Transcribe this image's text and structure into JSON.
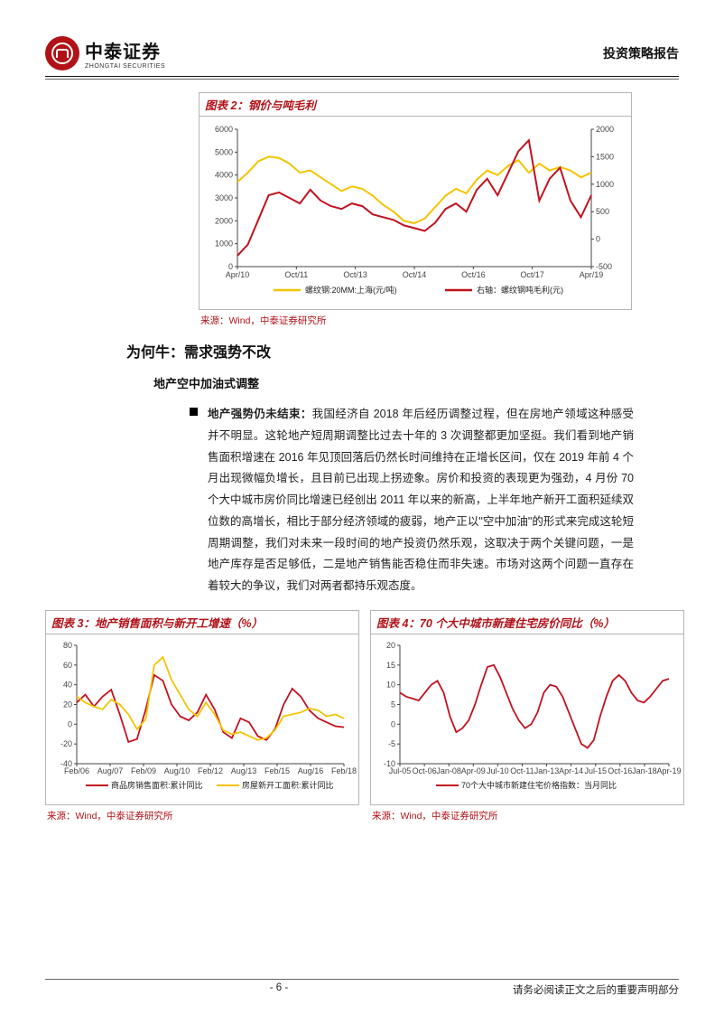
{
  "header": {
    "company_cn": "中泰证券",
    "company_en": "ZHONGTAI SECURITIES",
    "report_type": "投资策略报告"
  },
  "chart2": {
    "title": "图表 2：钢价与吨毛利",
    "source": "来源：Wind，中泰证券研究所",
    "left_axis": {
      "min": 0,
      "max": 6000,
      "ticks": [
        0,
        1000,
        2000,
        3000,
        4000,
        5000,
        6000
      ]
    },
    "right_axis": {
      "min": -500,
      "max": 2000,
      "ticks": [
        -500,
        0,
        500,
        1000,
        1500,
        2000
      ]
    },
    "x_labels": [
      "Apr/10",
      "Oct/11",
      "Oct/13",
      "Oct/14",
      "Oct/16",
      "Oct/17",
      "Apr/19"
    ],
    "series1": {
      "name": "螺纹钢:20MM:上海(元/吨)",
      "color": "#f5c400",
      "points": [
        3700,
        4100,
        4600,
        4800,
        4750,
        4500,
        4100,
        4200,
        3900,
        3600,
        3300,
        3500,
        3400,
        3100,
        2700,
        2400,
        2000,
        1900,
        2100,
        2600,
        3100,
        3400,
        3200,
        3800,
        4200,
        4000,
        4400,
        4650,
        4100,
        4500,
        4200,
        4350,
        4200,
        3900,
        4100
      ]
    },
    "series2": {
      "name": "右轴：螺纹钢吨毛利(元)",
      "color": "#c1121f",
      "points": [
        -300,
        -100,
        350,
        800,
        850,
        750,
        650,
        900,
        700,
        600,
        550,
        650,
        600,
        450,
        400,
        350,
        250,
        200,
        150,
        300,
        550,
        650,
        500,
        900,
        1100,
        800,
        1200,
        1600,
        1800,
        700,
        1100,
        1300,
        700,
        400,
        800
      ]
    }
  },
  "section": {
    "h1": "为何牛：需求强势不改",
    "h2": "地产空中加油式调整",
    "para_title": "地产强势仍未结束：",
    "para_body": "我国经济自 2018 年后经历调整过程，但在房地产领域这种感受并不明显。这轮地产短周期调整比过去十年的 3 次调整都更加坚挺。我们看到地产销售面积增速在 2016 年见顶回落后仍然长时间维持在正增长区间，仅在 2019 年前 4 个月出现微幅负增长，且目前已出现上拐迹象。房价和投资的表现更为强劲，4 月份 70 个大中城市房价同比增速已经创出 2011 年以来的新高，上半年地产新开工面积延续双位数的高增长，相比于部分经济领域的疲弱，地产正以\"空中加油\"的形式来完成这轮短周期调整，我们对未来一段时间的地产投资仍然乐观，这取决于两个关键问题，一是地产库存是否足够低，二是地产销售能否稳住而非失速。市场对这两个问题一直存在着较大的争议，我们对两者都持乐观态度。"
  },
  "chart3": {
    "title": "图表 3：地产销售面积与新开工增速（%）",
    "source": "来源：Wind，中泰证券研究所",
    "y_axis": {
      "ticks": [
        -40,
        -20,
        0,
        20,
        40,
        60,
        80
      ]
    },
    "x_labels": [
      "Feb/06",
      "Aug/07",
      "Feb/09",
      "Aug/10",
      "Feb/12",
      "Aug/13",
      "Feb/15",
      "Aug/16",
      "Feb/18"
    ],
    "series1": {
      "name": "商品房销售面积:累计同比",
      "color": "#c1121f",
      "points": [
        22,
        30,
        18,
        28,
        35,
        10,
        -18,
        -15,
        15,
        50,
        44,
        20,
        8,
        4,
        12,
        30,
        15,
        -8,
        -14,
        6,
        2,
        -12,
        -16,
        -5,
        20,
        36,
        28,
        14,
        6,
        2,
        -2,
        -3
      ]
    },
    "series2": {
      "name": "房屋新开工面积:累计同比",
      "color": "#f5c400",
      "points": [
        28,
        22,
        18,
        15,
        25,
        20,
        10,
        -5,
        5,
        60,
        68,
        45,
        30,
        15,
        8,
        22,
        10,
        -6,
        -10,
        -8,
        -12,
        -16,
        -14,
        -6,
        8,
        10,
        12,
        16,
        14,
        8,
        10,
        6
      ]
    }
  },
  "chart4": {
    "title": "图表 4：70 个大中城市新建住宅房价同比（%）",
    "source": "来源：Wind，中泰证券研究所",
    "y_axis": {
      "ticks": [
        -10,
        -5,
        0,
        5,
        10,
        15,
        20
      ]
    },
    "x_labels": [
      "Jul-05",
      "Oct-06",
      "Jan-08",
      "Apr-09",
      "Jul-10",
      "Oct-11",
      "Jan-13",
      "Apr-14",
      "Jul-15",
      "Oct-16",
      "Jan-18",
      "Apr-19"
    ],
    "series1": {
      "name": "70个大中城市新建住宅价格指数：当月同比",
      "color": "#c1121f",
      "points": [
        8,
        7,
        6.5,
        6,
        8,
        10,
        11,
        8,
        2,
        -2,
        -1,
        1,
        5,
        10,
        14.5,
        15,
        12,
        8,
        4,
        1,
        -1,
        0,
        3,
        8,
        10,
        9.5,
        7,
        3,
        -1,
        -5,
        -6,
        -4,
        2,
        7,
        11,
        12.5,
        11,
        8,
        6,
        5.5,
        7,
        9,
        11,
        11.5
      ]
    }
  },
  "footer": {
    "page": "- 6 -",
    "disclaimer": "请务必阅读正文之后的重要声明部分"
  },
  "colors": {
    "red": "#c1121f",
    "yellow": "#f5c400",
    "brand": "#b11218",
    "grid": "#d9d9d9"
  }
}
